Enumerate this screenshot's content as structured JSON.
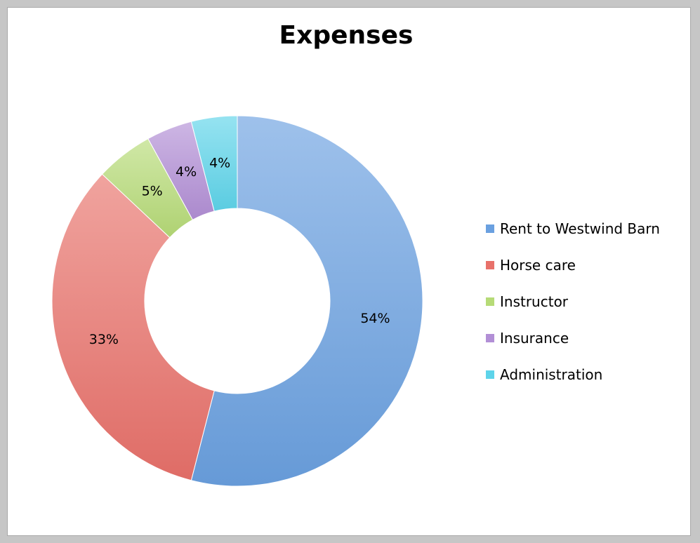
{
  "chart_data": {
    "type": "pie",
    "variant": "donut",
    "title": "Expenses",
    "categories": [
      "Rent to Westwind Barn",
      "Horse care",
      "Instructor",
      "Insurance",
      "Administration"
    ],
    "values": [
      54,
      33,
      5,
      4,
      4
    ],
    "value_labels": [
      "54%",
      "33%",
      "5%",
      "4%",
      "4%"
    ],
    "colors": [
      "#6aa0e0",
      "#e8716a",
      "#b6db77",
      "#b28fd6",
      "#5ed4ea"
    ],
    "legend_position": "right",
    "start_angle": "12 o'clock, clockwise"
  }
}
